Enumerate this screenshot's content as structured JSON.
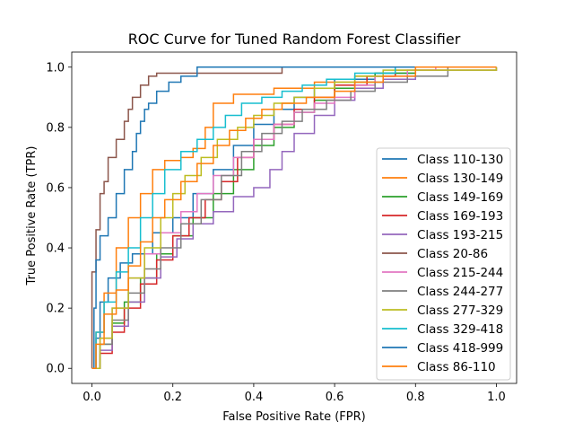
{
  "chart_data": {
    "type": "line",
    "title": "ROC Curve for Tuned Random Forest Classifier",
    "xlabel": "False Positive Rate (FPR)",
    "ylabel": "True Positive Rate (TPR)",
    "xlim": [
      -0.05,
      1.05
    ],
    "ylim": [
      -0.05,
      1.05
    ],
    "xticks": [
      "0.0",
      "0.2",
      "0.4",
      "0.6",
      "0.8",
      "1.0"
    ],
    "yticks": [
      "0.0",
      "0.2",
      "0.4",
      "0.6",
      "0.8",
      "1.0"
    ],
    "grid": false,
    "legend_position": "lower right",
    "series": [
      {
        "name": "Class 110-130",
        "color": "#1f77b4",
        "points": [
          [
            0,
            0
          ],
          [
            0.01,
            0.1
          ],
          [
            0.02,
            0.22
          ],
          [
            0.04,
            0.3
          ],
          [
            0.07,
            0.35
          ],
          [
            0.1,
            0.38
          ],
          [
            0.15,
            0.45
          ],
          [
            0.2,
            0.5
          ],
          [
            0.25,
            0.58
          ],
          [
            0.3,
            0.66
          ],
          [
            0.35,
            0.74
          ],
          [
            0.4,
            0.81
          ],
          [
            0.45,
            0.86
          ],
          [
            0.5,
            0.9
          ],
          [
            0.55,
            0.93
          ],
          [
            0.6,
            0.96
          ],
          [
            0.7,
            0.98
          ],
          [
            0.8,
            1.0
          ],
          [
            1.0,
            1.0
          ]
        ]
      },
      {
        "name": "Class 130-149",
        "color": "#ff7f0e",
        "points": [
          [
            0,
            0
          ],
          [
            0.01,
            0.12
          ],
          [
            0.03,
            0.25
          ],
          [
            0.06,
            0.4
          ],
          [
            0.09,
            0.5
          ],
          [
            0.12,
            0.58
          ],
          [
            0.15,
            0.66
          ],
          [
            0.18,
            0.69
          ],
          [
            0.22,
            0.7
          ],
          [
            0.25,
            0.73
          ],
          [
            0.28,
            0.8
          ],
          [
            0.3,
            0.88
          ],
          [
            0.35,
            0.91
          ],
          [
            0.45,
            0.93
          ],
          [
            0.55,
            0.95
          ],
          [
            0.65,
            0.97
          ],
          [
            0.75,
            0.99
          ],
          [
            1.0,
            1.0
          ]
        ]
      },
      {
        "name": "Class 149-169",
        "color": "#2ca02c",
        "points": [
          [
            0,
            0
          ],
          [
            0.02,
            0.08
          ],
          [
            0.05,
            0.15
          ],
          [
            0.08,
            0.22
          ],
          [
            0.12,
            0.3
          ],
          [
            0.16,
            0.38
          ],
          [
            0.2,
            0.44
          ],
          [
            0.25,
            0.5
          ],
          [
            0.3,
            0.58
          ],
          [
            0.35,
            0.66
          ],
          [
            0.4,
            0.74
          ],
          [
            0.45,
            0.8
          ],
          [
            0.5,
            0.85
          ],
          [
            0.55,
            0.89
          ],
          [
            0.6,
            0.93
          ],
          [
            0.65,
            0.95
          ],
          [
            0.7,
            0.98
          ],
          [
            0.8,
            1.0
          ],
          [
            1.0,
            1.0
          ]
        ]
      },
      {
        "name": "Class 169-193",
        "color": "#d62728",
        "points": [
          [
            0,
            0
          ],
          [
            0.02,
            0.05
          ],
          [
            0.05,
            0.12
          ],
          [
            0.08,
            0.2
          ],
          [
            0.12,
            0.28
          ],
          [
            0.16,
            0.36
          ],
          [
            0.2,
            0.44
          ],
          [
            0.24,
            0.5
          ],
          [
            0.28,
            0.56
          ],
          [
            0.32,
            0.62
          ],
          [
            0.36,
            0.7
          ],
          [
            0.4,
            0.76
          ],
          [
            0.45,
            0.81
          ],
          [
            0.5,
            0.86
          ],
          [
            0.55,
            0.9
          ],
          [
            0.6,
            0.94
          ],
          [
            0.68,
            0.97
          ],
          [
            0.75,
            1.0
          ],
          [
            1.0,
            1.0
          ]
        ]
      },
      {
        "name": "Class 193-215",
        "color": "#9467bd",
        "points": [
          [
            0,
            0
          ],
          [
            0.02,
            0.06
          ],
          [
            0.05,
            0.14
          ],
          [
            0.09,
            0.22
          ],
          [
            0.13,
            0.3
          ],
          [
            0.17,
            0.37
          ],
          [
            0.21,
            0.43
          ],
          [
            0.25,
            0.48
          ],
          [
            0.3,
            0.52
          ],
          [
            0.35,
            0.57
          ],
          [
            0.4,
            0.6
          ],
          [
            0.44,
            0.66
          ],
          [
            0.47,
            0.72
          ],
          [
            0.5,
            0.78
          ],
          [
            0.55,
            0.84
          ],
          [
            0.6,
            0.89
          ],
          [
            0.65,
            0.93
          ],
          [
            0.72,
            0.96
          ],
          [
            0.8,
            0.99
          ],
          [
            1.0,
            1.0
          ]
        ]
      },
      {
        "name": "Class 20-86",
        "color": "#8c564b",
        "points": [
          [
            0,
            0
          ],
          [
            0,
            0.32
          ],
          [
            0.01,
            0.46
          ],
          [
            0.02,
            0.58
          ],
          [
            0.03,
            0.62
          ],
          [
            0.04,
            0.7
          ],
          [
            0.06,
            0.76
          ],
          [
            0.08,
            0.82
          ],
          [
            0.09,
            0.86
          ],
          [
            0.1,
            0.9
          ],
          [
            0.12,
            0.94
          ],
          [
            0.14,
            0.97
          ],
          [
            0.16,
            0.98
          ],
          [
            0.2,
            0.98
          ],
          [
            0.3,
            0.98
          ],
          [
            0.47,
            0.98
          ],
          [
            0.47,
            1.0
          ],
          [
            1.0,
            1.0
          ]
        ]
      },
      {
        "name": "Class 215-244",
        "color": "#e377c2",
        "points": [
          [
            0,
            0
          ],
          [
            0.02,
            0.1
          ],
          [
            0.05,
            0.2
          ],
          [
            0.09,
            0.3
          ],
          [
            0.13,
            0.38
          ],
          [
            0.17,
            0.45
          ],
          [
            0.22,
            0.52
          ],
          [
            0.26,
            0.58
          ],
          [
            0.3,
            0.64
          ],
          [
            0.35,
            0.7
          ],
          [
            0.4,
            0.76
          ],
          [
            0.45,
            0.81
          ],
          [
            0.5,
            0.85
          ],
          [
            0.55,
            0.88
          ],
          [
            0.6,
            0.9
          ],
          [
            0.65,
            0.94
          ],
          [
            0.7,
            0.97
          ],
          [
            0.78,
            0.99
          ],
          [
            0.85,
            1.0
          ],
          [
            1.0,
            1.0
          ]
        ]
      },
      {
        "name": "Class 244-277",
        "color": "#7f7f7f",
        "points": [
          [
            0,
            0
          ],
          [
            0.02,
            0.08
          ],
          [
            0.05,
            0.16
          ],
          [
            0.09,
            0.25
          ],
          [
            0.13,
            0.33
          ],
          [
            0.17,
            0.4
          ],
          [
            0.22,
            0.48
          ],
          [
            0.27,
            0.56
          ],
          [
            0.32,
            0.64
          ],
          [
            0.37,
            0.72
          ],
          [
            0.42,
            0.78
          ],
          [
            0.47,
            0.82
          ],
          [
            0.52,
            0.86
          ],
          [
            0.58,
            0.89
          ],
          [
            0.64,
            0.92
          ],
          [
            0.7,
            0.95
          ],
          [
            0.78,
            0.97
          ],
          [
            0.88,
            0.99
          ],
          [
            0.88,
            1.0
          ],
          [
            1.0,
            1.0
          ]
        ]
      },
      {
        "name": "Class 277-329",
        "color": "#bcbd22",
        "points": [
          [
            0,
            0
          ],
          [
            0.02,
            0.1
          ],
          [
            0.05,
            0.2
          ],
          [
            0.09,
            0.3
          ],
          [
            0.13,
            0.4
          ],
          [
            0.17,
            0.5
          ],
          [
            0.2,
            0.58
          ],
          [
            0.23,
            0.64
          ],
          [
            0.27,
            0.7
          ],
          [
            0.31,
            0.76
          ],
          [
            0.36,
            0.8
          ],
          [
            0.4,
            0.84
          ],
          [
            0.45,
            0.88
          ],
          [
            0.5,
            0.9
          ],
          [
            0.55,
            0.93
          ],
          [
            0.6,
            0.95
          ],
          [
            0.65,
            0.97
          ],
          [
            0.72,
            0.99
          ],
          [
            1.0,
            1.0
          ]
        ]
      },
      {
        "name": "Class 329-418",
        "color": "#17becf",
        "points": [
          [
            0,
            0
          ],
          [
            0.01,
            0.12
          ],
          [
            0.03,
            0.22
          ],
          [
            0.06,
            0.32
          ],
          [
            0.09,
            0.4
          ],
          [
            0.12,
            0.5
          ],
          [
            0.15,
            0.58
          ],
          [
            0.18,
            0.66
          ],
          [
            0.22,
            0.72
          ],
          [
            0.26,
            0.76
          ],
          [
            0.3,
            0.8
          ],
          [
            0.33,
            0.84
          ],
          [
            0.37,
            0.88
          ],
          [
            0.42,
            0.9
          ],
          [
            0.47,
            0.92
          ],
          [
            0.52,
            0.94
          ],
          [
            0.58,
            0.96
          ],
          [
            0.65,
            0.98
          ],
          [
            0.75,
            1.0
          ],
          [
            1.0,
            1.0
          ]
        ]
      },
      {
        "name": "Class 418-999",
        "color": "#1f77b4",
        "points": [
          [
            0,
            0
          ],
          [
            0.005,
            0.2
          ],
          [
            0.01,
            0.36
          ],
          [
            0.02,
            0.44
          ],
          [
            0.04,
            0.5
          ],
          [
            0.06,
            0.58
          ],
          [
            0.08,
            0.66
          ],
          [
            0.1,
            0.72
          ],
          [
            0.11,
            0.78
          ],
          [
            0.12,
            0.82
          ],
          [
            0.13,
            0.86
          ],
          [
            0.14,
            0.88
          ],
          [
            0.16,
            0.92
          ],
          [
            0.19,
            0.95
          ],
          [
            0.22,
            0.97
          ],
          [
            0.26,
            1.0
          ],
          [
            1.0,
            1.0
          ]
        ]
      },
      {
        "name": "Class 86-110",
        "color": "#ff7f0e",
        "points": [
          [
            0,
            0
          ],
          [
            0.01,
            0.08
          ],
          [
            0.03,
            0.18
          ],
          [
            0.06,
            0.26
          ],
          [
            0.09,
            0.34
          ],
          [
            0.12,
            0.42
          ],
          [
            0.15,
            0.5
          ],
          [
            0.18,
            0.56
          ],
          [
            0.22,
            0.62
          ],
          [
            0.26,
            0.68
          ],
          [
            0.3,
            0.74
          ],
          [
            0.34,
            0.79
          ],
          [
            0.38,
            0.83
          ],
          [
            0.42,
            0.86
          ],
          [
            0.47,
            0.88
          ],
          [
            0.53,
            0.9
          ],
          [
            0.6,
            0.92
          ],
          [
            0.65,
            0.95
          ],
          [
            0.72,
            0.97
          ],
          [
            0.8,
            1.0
          ],
          [
            1.0,
            1.0
          ]
        ]
      }
    ]
  }
}
